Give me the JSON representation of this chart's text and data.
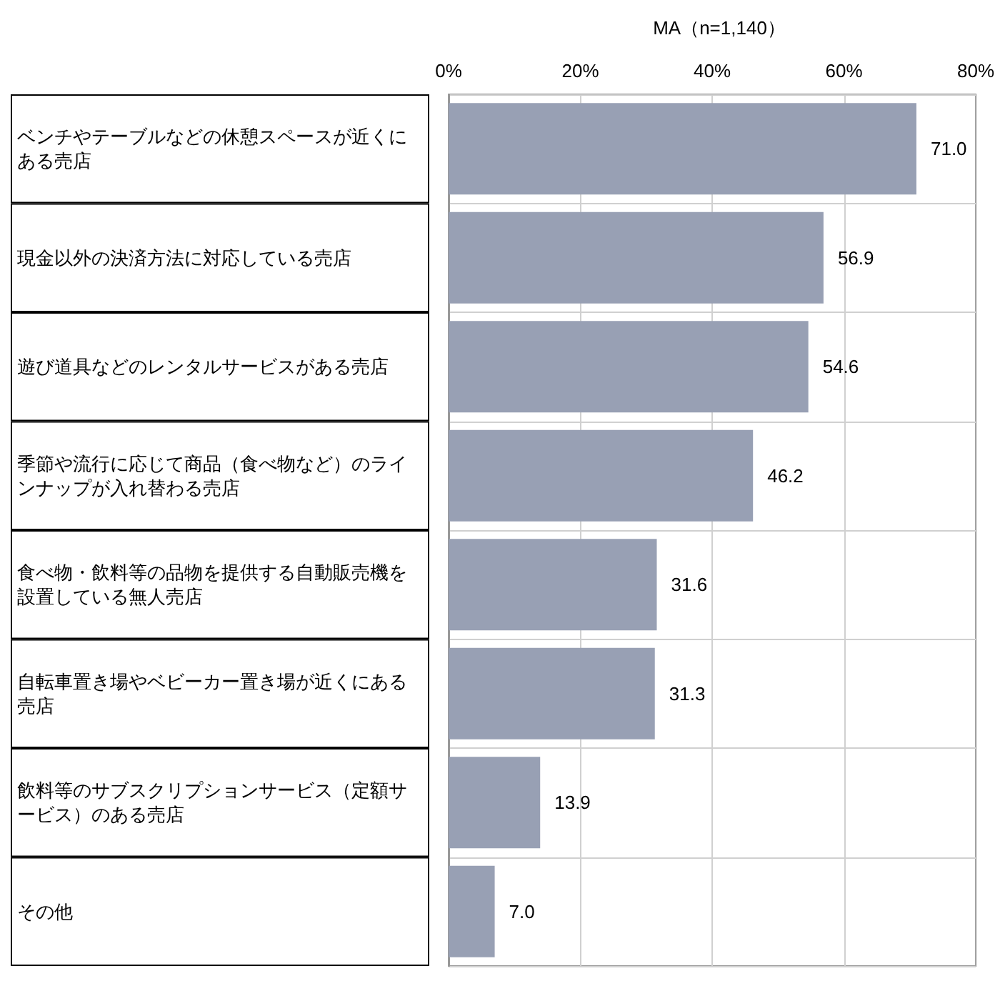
{
  "chart_data": {
    "type": "bar",
    "orientation": "horizontal",
    "title": "MA（n=1,140）",
    "categories": [
      "ベンチやテーブルなどの休憩スペースが近くにある売店",
      "現金以外の決済方法に対応している売店",
      "遊び道具などのレンタルサービスがある売店",
      "季節や流行に応じて商品（食べ物など）のラインナップが入れ替わる売店",
      "食べ物・飲料等の品物を提供する自動販売機を設置している無人売店",
      "自転車置き場やベビーカー置き場が近くにある売店",
      "飲料等のサブスクリプションサービス（定額サービス）のある売店",
      "その他"
    ],
    "values": [
      71.0,
      56.9,
      54.6,
      46.2,
      31.6,
      31.3,
      13.9,
      7.0
    ],
    "value_labels": [
      "71.0",
      "56.9",
      "54.6",
      "46.2",
      "31.6",
      "31.3",
      "13.9",
      "7.0"
    ],
    "color": "#98a0b4",
    "xlim": [
      0,
      80
    ],
    "xticks": [
      {
        "value": 0,
        "label": "0%"
      },
      {
        "value": 20,
        "label": "20%"
      },
      {
        "value": 40,
        "label": "40%"
      },
      {
        "value": 60,
        "label": "60%"
      },
      {
        "value": 80,
        "label": "80%"
      }
    ],
    "grid": true
  }
}
